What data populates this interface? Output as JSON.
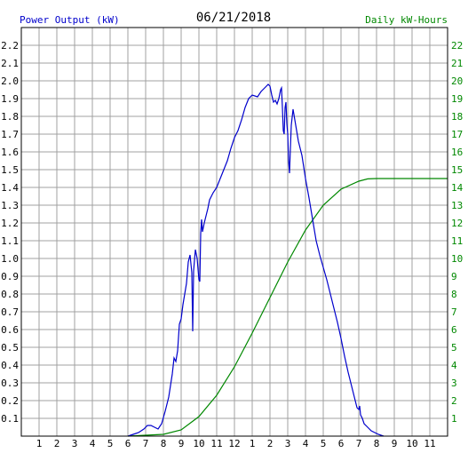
{
  "header": {
    "left_label": "Power Output (kW)",
    "date": "06/21/2018",
    "right_label": "Daily kW-Hours"
  },
  "colors": {
    "left_label": "#0000cc",
    "right_label": "#008800",
    "power_line": "#0000cc",
    "energy_line": "#008800",
    "grid": "#a0a0a0",
    "frame": "#000000"
  },
  "chart_data": {
    "type": "line",
    "title": "06/21/2018",
    "x_tick_labels": [
      "1",
      "2",
      "3",
      "4",
      "5",
      "6",
      "7",
      "8",
      "9",
      "10",
      "11",
      "12",
      "1",
      "2",
      "3",
      "4",
      "5",
      "6",
      "7",
      "8",
      "9",
      "10",
      "11"
    ],
    "xlim_hours": [
      0,
      24
    ],
    "left_axis": {
      "label": "Power Output (kW)",
      "ylim": [
        0,
        2.3
      ],
      "ticks": [
        "0.1",
        "0.2",
        "0.3",
        "0.4",
        "0.5",
        "0.6",
        "0.7",
        "0.8",
        "0.9",
        "1.0",
        "1.1",
        "1.2",
        "1.3",
        "1.4",
        "1.5",
        "1.6",
        "1.7",
        "1.8",
        "1.9",
        "2.0",
        "2.1",
        "2.2"
      ]
    },
    "right_axis": {
      "label": "Daily kW-Hours",
      "ylim": [
        0,
        23
      ],
      "ticks": [
        "1",
        "2",
        "3",
        "4",
        "5",
        "6",
        "7",
        "8",
        "9",
        "10",
        "11",
        "12",
        "13",
        "14",
        "15",
        "16",
        "17",
        "18",
        "19",
        "20",
        "21",
        "22"
      ]
    },
    "grid": true,
    "series": [
      {
        "axis": "left",
        "points": [
          [
            6.0,
            0.0
          ],
          [
            6.3,
            0.01
          ],
          [
            6.6,
            0.02
          ],
          [
            6.9,
            0.04
          ],
          [
            7.1,
            0.06
          ],
          [
            7.3,
            0.06
          ],
          [
            7.5,
            0.05
          ],
          [
            7.7,
            0.04
          ],
          [
            7.9,
            0.07
          ],
          [
            8.1,
            0.14
          ],
          [
            8.3,
            0.22
          ],
          [
            8.5,
            0.35
          ],
          [
            8.6,
            0.44
          ],
          [
            8.7,
            0.42
          ],
          [
            8.8,
            0.48
          ],
          [
            8.9,
            0.63
          ],
          [
            9.0,
            0.66
          ],
          [
            9.1,
            0.74
          ],
          [
            9.2,
            0.8
          ],
          [
            9.3,
            0.86
          ],
          [
            9.4,
            0.98
          ],
          [
            9.5,
            1.02
          ],
          [
            9.6,
            0.92
          ],
          [
            9.65,
            0.59
          ],
          [
            9.7,
            0.93
          ],
          [
            9.8,
            1.05
          ],
          [
            9.9,
            1.0
          ],
          [
            10.0,
            0.88
          ],
          [
            10.05,
            0.87
          ],
          [
            10.1,
            1.14
          ],
          [
            10.15,
            1.22
          ],
          [
            10.2,
            1.15
          ],
          [
            10.3,
            1.2
          ],
          [
            10.4,
            1.24
          ],
          [
            10.5,
            1.28
          ],
          [
            10.6,
            1.33
          ],
          [
            10.8,
            1.37
          ],
          [
            11.0,
            1.4
          ],
          [
            11.2,
            1.45
          ],
          [
            11.4,
            1.5
          ],
          [
            11.6,
            1.55
          ],
          [
            11.8,
            1.62
          ],
          [
            12.0,
            1.68
          ],
          [
            12.2,
            1.72
          ],
          [
            12.4,
            1.78
          ],
          [
            12.6,
            1.85
          ],
          [
            12.8,
            1.9
          ],
          [
            13.0,
            1.92
          ],
          [
            13.3,
            1.91
          ],
          [
            13.5,
            1.94
          ],
          [
            13.7,
            1.96
          ],
          [
            13.9,
            1.98
          ],
          [
            14.0,
            1.97
          ],
          [
            14.1,
            1.92
          ],
          [
            14.2,
            1.88
          ],
          [
            14.3,
            1.89
          ],
          [
            14.4,
            1.87
          ],
          [
            14.5,
            1.9
          ],
          [
            14.6,
            1.95
          ],
          [
            14.65,
            1.96
          ],
          [
            14.7,
            1.85
          ],
          [
            14.75,
            1.72
          ],
          [
            14.8,
            1.7
          ],
          [
            14.85,
            1.85
          ],
          [
            14.9,
            1.88
          ],
          [
            14.95,
            1.76
          ],
          [
            15.0,
            1.7
          ],
          [
            15.05,
            1.55
          ],
          [
            15.1,
            1.48
          ],
          [
            15.15,
            1.62
          ],
          [
            15.2,
            1.75
          ],
          [
            15.3,
            1.84
          ],
          [
            15.4,
            1.78
          ],
          [
            15.5,
            1.72
          ],
          [
            15.6,
            1.66
          ],
          [
            15.8,
            1.58
          ],
          [
            16.0,
            1.45
          ],
          [
            16.2,
            1.34
          ],
          [
            16.4,
            1.22
          ],
          [
            16.6,
            1.1
          ],
          [
            16.8,
            1.02
          ],
          [
            17.0,
            0.95
          ],
          [
            17.2,
            0.88
          ],
          [
            17.4,
            0.8
          ],
          [
            17.6,
            0.72
          ],
          [
            17.8,
            0.64
          ],
          [
            18.0,
            0.55
          ],
          [
            18.2,
            0.45
          ],
          [
            18.4,
            0.36
          ],
          [
            18.6,
            0.28
          ],
          [
            18.8,
            0.2
          ],
          [
            18.9,
            0.16
          ],
          [
            19.0,
            0.15
          ],
          [
            19.05,
            0.17
          ],
          [
            19.1,
            0.12
          ],
          [
            19.2,
            0.1
          ],
          [
            19.3,
            0.07
          ],
          [
            19.5,
            0.05
          ],
          [
            19.7,
            0.03
          ],
          [
            19.9,
            0.02
          ],
          [
            20.1,
            0.01
          ],
          [
            20.4,
            0.0
          ]
        ]
      },
      {
        "axis": "right",
        "points": [
          [
            6.0,
            0.0
          ],
          [
            7.0,
            0.05
          ],
          [
            8.0,
            0.1
          ],
          [
            9.0,
            0.35
          ],
          [
            10.0,
            1.1
          ],
          [
            11.0,
            2.3
          ],
          [
            12.0,
            3.9
          ],
          [
            13.0,
            5.8
          ],
          [
            14.0,
            7.8
          ],
          [
            15.0,
            9.8
          ],
          [
            16.0,
            11.6
          ],
          [
            17.0,
            13.0
          ],
          [
            18.0,
            13.9
          ],
          [
            19.0,
            14.35
          ],
          [
            19.5,
            14.48
          ],
          [
            20.0,
            14.5
          ],
          [
            24.0,
            14.5
          ]
        ]
      }
    ]
  }
}
